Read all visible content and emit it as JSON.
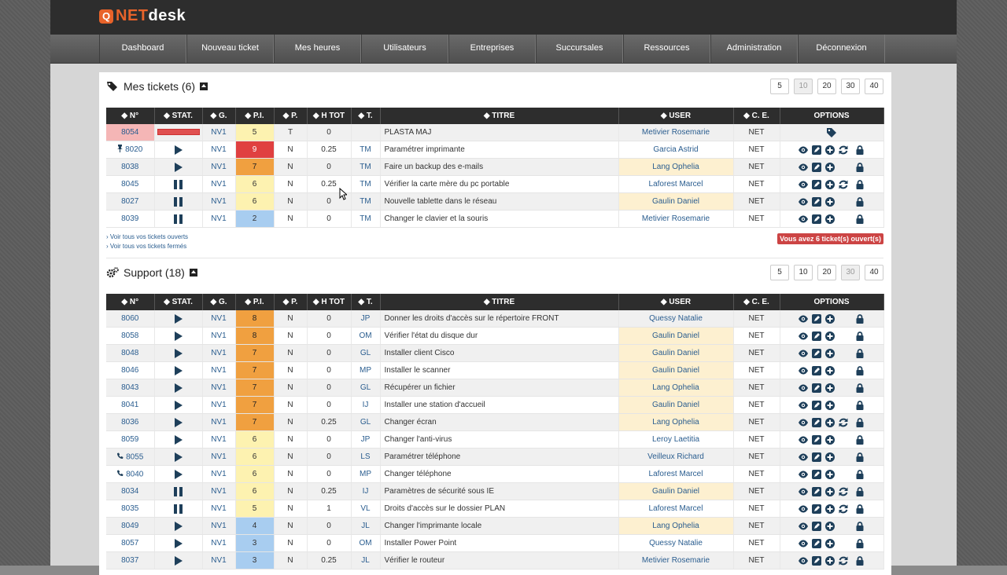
{
  "brand": {
    "badge": "Q",
    "name_a": "NET",
    "name_b": "desk"
  },
  "nav": [
    "Dashboard",
    "Nouveau ticket",
    "Mes heures",
    "Utilisateurs",
    "Entreprises",
    "Succursales",
    "Ressources",
    "Administration",
    "Déconnexion"
  ],
  "headers": [
    "◆ N°",
    "◆ STAT.",
    "◆ G.",
    "◆ P.I.",
    "◆ P.",
    "◆ H TOT",
    "◆ T.",
    "◆ TITRE",
    "◆ USER",
    "◆ C. E.",
    "OPTIONS"
  ],
  "mine": {
    "title": "Mes tickets (6)",
    "pager": [
      "5",
      "10",
      "20",
      "30",
      "40"
    ],
    "pager_active": 1,
    "links": [
      "› Voir tous vos tickets ouverts",
      "› Voir tous vos tickets fermés"
    ],
    "alert": "Vous avez 6 ticket(s) ouvert(s)",
    "rows": [
      {
        "num": "8054",
        "stat": "bar",
        "g": "NV1",
        "pi": "5",
        "p": "T",
        "h": "0",
        "t": "",
        "title": "PLASTA MAJ",
        "user": "Metivier Rosemarie",
        "ce": "NET",
        "hl": false,
        "opts": [
          "tag"
        ],
        "red": true
      },
      {
        "num": "8020",
        "prefix": "pin",
        "stat": "play",
        "g": "NV1",
        "pi": "9",
        "p": "N",
        "h": "0.25",
        "t": "TM",
        "title": "Paramétrer imprimante",
        "user": "Garcia Astrid",
        "ce": "NET",
        "hl": false,
        "opts": [
          "eye",
          "edit",
          "plus",
          "sync",
          "lock"
        ]
      },
      {
        "num": "8038",
        "stat": "play",
        "g": "NV1",
        "pi": "7",
        "p": "N",
        "h": "0",
        "t": "TM",
        "title": "Faire un backup des e-mails",
        "user": "Lang Ophelia",
        "ce": "NET",
        "hl": true,
        "opts": [
          "eye",
          "edit",
          "plus",
          "",
          "lock"
        ]
      },
      {
        "num": "8045",
        "stat": "pause",
        "g": "NV1",
        "pi": "6",
        "p": "N",
        "h": "0.25",
        "t": "TM",
        "title": "Vérifier la carte mère du pc portable",
        "user": "Laforest Marcel",
        "ce": "NET",
        "hl": false,
        "opts": [
          "eye",
          "edit",
          "plus",
          "sync",
          "lock"
        ]
      },
      {
        "num": "8027",
        "stat": "pause",
        "g": "NV1",
        "pi": "6",
        "p": "N",
        "h": "0",
        "t": "TM",
        "title": "Nouvelle tablette dans le réseau",
        "user": "Gaulin Daniel",
        "ce": "NET",
        "hl": true,
        "opts": [
          "eye",
          "edit",
          "plus",
          "",
          "lock"
        ]
      },
      {
        "num": "8039",
        "stat": "pause",
        "g": "NV1",
        "pi": "2",
        "p": "N",
        "h": "0",
        "t": "TM",
        "title": "Changer le clavier et la souris",
        "user": "Metivier Rosemarie",
        "ce": "NET",
        "hl": false,
        "opts": [
          "eye",
          "edit",
          "plus",
          "",
          "lock"
        ]
      }
    ]
  },
  "support": {
    "title": "Support (18)",
    "pager": [
      "5",
      "10",
      "20",
      "30",
      "40"
    ],
    "pager_active": 3,
    "rows": [
      {
        "num": "8060",
        "stat": "play",
        "g": "NV1",
        "pi": "8",
        "p": "N",
        "h": "0",
        "t": "JP",
        "title": "Donner les droits d'accès sur le répertoire FRONT",
        "user": "Quessy Natalie",
        "ce": "NET",
        "hl": false,
        "opts": [
          "eye",
          "edit",
          "plus",
          "",
          "lock"
        ]
      },
      {
        "num": "8058",
        "stat": "play",
        "g": "NV1",
        "pi": "8",
        "p": "N",
        "h": "0",
        "t": "OM",
        "title": "Vérifier l'état du disque dur",
        "user": "Gaulin Daniel",
        "ce": "NET",
        "hl": true,
        "opts": [
          "eye",
          "edit",
          "plus",
          "",
          "lock"
        ]
      },
      {
        "num": "8048",
        "stat": "play",
        "g": "NV1",
        "pi": "7",
        "p": "N",
        "h": "0",
        "t": "GL",
        "title": "Installer client Cisco",
        "user": "Gaulin Daniel",
        "ce": "NET",
        "hl": true,
        "opts": [
          "eye",
          "edit",
          "plus",
          "",
          "lock"
        ]
      },
      {
        "num": "8046",
        "stat": "play",
        "g": "NV1",
        "pi": "7",
        "p": "N",
        "h": "0",
        "t": "MP",
        "title": "Installer le scanner",
        "user": "Gaulin Daniel",
        "ce": "NET",
        "hl": true,
        "opts": [
          "eye",
          "edit",
          "plus",
          "",
          "lock"
        ]
      },
      {
        "num": "8043",
        "stat": "play",
        "g": "NV1",
        "pi": "7",
        "p": "N",
        "h": "0",
        "t": "GL",
        "title": "Récupérer un fichier",
        "user": "Lang Ophelia",
        "ce": "NET",
        "hl": true,
        "opts": [
          "eye",
          "edit",
          "plus",
          "",
          "lock"
        ]
      },
      {
        "num": "8041",
        "stat": "play",
        "g": "NV1",
        "pi": "7",
        "p": "N",
        "h": "0",
        "t": "IJ",
        "title": "Installer une station d'accueil",
        "user": "Gaulin Daniel",
        "ce": "NET",
        "hl": true,
        "opts": [
          "eye",
          "edit",
          "plus",
          "",
          "lock"
        ]
      },
      {
        "num": "8036",
        "stat": "play",
        "g": "NV1",
        "pi": "7",
        "p": "N",
        "h": "0.25",
        "t": "GL",
        "title": "Changer écran",
        "user": "Lang Ophelia",
        "ce": "NET",
        "hl": true,
        "opts": [
          "eye",
          "edit",
          "plus",
          "sync",
          "lock"
        ]
      },
      {
        "num": "8059",
        "stat": "play",
        "g": "NV1",
        "pi": "6",
        "p": "N",
        "h": "0",
        "t": "JP",
        "title": "Changer l'anti-virus",
        "user": "Leroy Laetitia",
        "ce": "NET",
        "hl": false,
        "opts": [
          "eye",
          "edit",
          "plus",
          "",
          "lock"
        ]
      },
      {
        "num": "8055",
        "prefix": "phone",
        "stat": "play",
        "g": "NV1",
        "pi": "6",
        "p": "N",
        "h": "0",
        "t": "LS",
        "title": "Paramétrer téléphone",
        "user": "Veilleux Richard",
        "ce": "NET",
        "hl": false,
        "opts": [
          "eye",
          "edit",
          "plus",
          "",
          "lock"
        ]
      },
      {
        "num": "8040",
        "prefix": "phone",
        "stat": "play",
        "g": "NV1",
        "pi": "6",
        "p": "N",
        "h": "0",
        "t": "MP",
        "title": "Changer téléphone",
        "user": "Laforest Marcel",
        "ce": "NET",
        "hl": false,
        "opts": [
          "eye",
          "edit",
          "plus",
          "",
          "lock"
        ]
      },
      {
        "num": "8034",
        "stat": "pause",
        "g": "NV1",
        "pi": "6",
        "p": "N",
        "h": "0.25",
        "t": "IJ",
        "title": "Paramètres de sécurité sous IE",
        "user": "Gaulin Daniel",
        "ce": "NET",
        "hl": true,
        "opts": [
          "eye",
          "edit",
          "plus",
          "sync",
          "lock"
        ]
      },
      {
        "num": "8035",
        "stat": "pause",
        "g": "NV1",
        "pi": "5",
        "p": "N",
        "h": "1",
        "t": "VL",
        "title": "Droits d'accès sur le dossier PLAN",
        "user": "Laforest Marcel",
        "ce": "NET",
        "hl": false,
        "opts": [
          "eye",
          "edit",
          "plus",
          "sync",
          "lock"
        ]
      },
      {
        "num": "8049",
        "stat": "play",
        "g": "NV1",
        "pi": "4",
        "p": "N",
        "h": "0",
        "t": "JL",
        "title": "Changer l'imprimante locale",
        "user": "Lang Ophelia",
        "ce": "NET",
        "hl": true,
        "opts": [
          "eye",
          "edit",
          "plus",
          "",
          "lock"
        ]
      },
      {
        "num": "8057",
        "stat": "play",
        "g": "NV1",
        "pi": "3",
        "p": "N",
        "h": "0",
        "t": "OM",
        "title": "Installer Power Point",
        "user": "Quessy Natalie",
        "ce": "NET",
        "hl": false,
        "opts": [
          "eye",
          "edit",
          "plus",
          "",
          "lock"
        ]
      },
      {
        "num": "8037",
        "stat": "play",
        "g": "NV1",
        "pi": "3",
        "p": "N",
        "h": "0.25",
        "t": "JL",
        "title": "Vérifier le routeur",
        "user": "Metivier Rosemarie",
        "ce": "NET",
        "hl": false,
        "opts": [
          "eye",
          "edit",
          "plus",
          "sync",
          "lock"
        ]
      }
    ]
  }
}
